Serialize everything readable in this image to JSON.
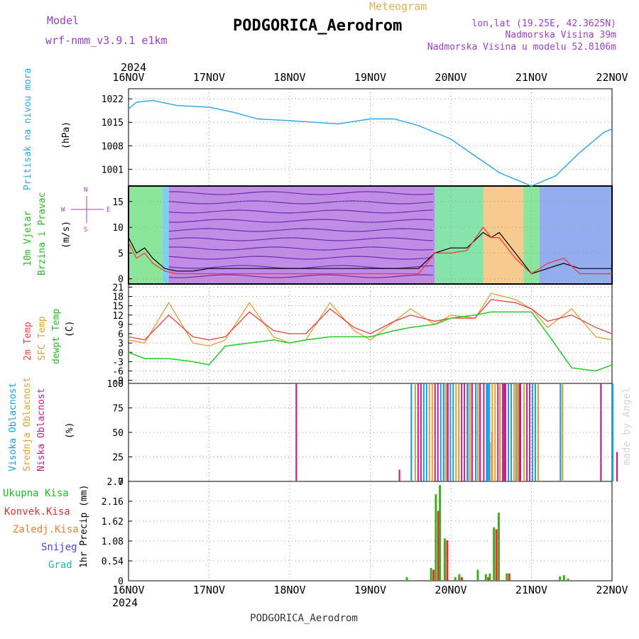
{
  "header": {
    "model_label": "Model",
    "model_name": "wrf-nmm_v3.9.1 e1km",
    "meteogram_label": "Meteogram",
    "station_title": "PODGORICA_Aerodrom",
    "lonlat": "lon,lat (19.25E, 42.3625N)",
    "elevation": "Nadmorska Visina 39m",
    "model_elevation": "Nadmorska Visina u modelu 52.8106m",
    "footer_title": "PODGORICA_Aerodrom",
    "watermark": "made by Angel",
    "year_top": "2024",
    "year_bottom": "2024",
    "date_ticks": [
      "16NOV",
      "17NOV",
      "18NOV",
      "19NOV",
      "20NOV",
      "21NOV",
      "22NOV"
    ]
  },
  "colors": {
    "pressure": "#2aa7e6",
    "wind_green": "#22bb22",
    "temp": "#e84040",
    "sfc": "#e0a030",
    "dew": "#22cc22",
    "high_cloud": "#1a9fe0",
    "mid_cloud": "#e0a030",
    "low_cloud": "#c0208a",
    "purple": "#9a40c8",
    "total_precip": "#44aa22",
    "conv_precip": "#e03030",
    "frozen": "#e88030",
    "snow": "#4444dd",
    "hail": "#22bbaa"
  },
  "panels": {
    "pressure": {
      "label1": "Pritisak na nivou mora",
      "unit": "(hPa)"
    },
    "wind": {
      "label1": "10m Vjetar",
      "label2": "Brzina i Pravac",
      "unit": "(m/s)",
      "compass_n": "N",
      "compass_w": "W",
      "compass_e": "E",
      "compass_s": "S"
    },
    "temp": {
      "label1": "2m Temp",
      "label2": "SFC Temp",
      "label3": "dewpt Temp",
      "unit": "(C)"
    },
    "cloud": {
      "label1": "Visoka Oblacnost",
      "label2": "Srednja Oblacnost",
      "label3": "Niska Oblacnost",
      "unit": "(%)"
    },
    "precip": {
      "label1": "Ukupna Kisa",
      "label2": "Konvek.Kisa",
      "label3": "Zaledj.Kisa",
      "label4": "Snijeg",
      "label5": "Grad",
      "unit": "1hr Precip (mm)"
    }
  },
  "chart_data": [
    {
      "type": "line",
      "x": [
        0,
        0.1,
        0.3,
        0.6,
        1,
        1.3,
        1.6,
        2,
        2.3,
        2.6,
        3,
        3.3,
        3.6,
        4,
        4.3,
        4.6,
        5,
        5.3,
        5.6,
        5.9,
        6
      ],
      "series": [
        {
          "values": [
            1019,
            1021,
            1021.5,
            1020,
            1019.5,
            1018,
            1016,
            1015.5,
            1015,
            1014.5,
            1016,
            1016,
            1014,
            1010,
            1005,
            1000,
            996,
            999,
            1006,
            1012,
            1013
          ]
        }
      ],
      "ylim": [
        996,
        1025
      ],
      "yticks": [
        "1001",
        "1008",
        "1015",
        "1022"
      ]
    },
    {
      "type": "line",
      "x": [
        0,
        0.1,
        0.2,
        0.3,
        0.45,
        0.6,
        0.8,
        1,
        1.5,
        2,
        2.5,
        3,
        3.3,
        3.6,
        3.8,
        4,
        4.2,
        4.4,
        4.5,
        4.6,
        4.8,
        5,
        5.2,
        5.4,
        5.6,
        5.8,
        6
      ],
      "series": [
        {
          "values": [
            8,
            5,
            6,
            4,
            2,
            1.5,
            1.5,
            2,
            2,
            2,
            2,
            2,
            2,
            2,
            5,
            6,
            6,
            9,
            8,
            9,
            5,
            1,
            2,
            3,
            2,
            2,
            2
          ]
        },
        {
          "values": [
            7,
            4,
            5,
            3,
            1.5,
            1,
            1,
            1,
            1,
            1,
            1,
            1,
            1,
            1,
            5,
            5,
            5.5,
            10,
            8,
            8,
            4,
            1,
            3,
            4,
            1,
            1,
            1
          ]
        }
      ],
      "ylim": [
        -1,
        18
      ],
      "yticks": [
        "0",
        "5",
        "10",
        "15"
      ]
    },
    {
      "type": "line",
      "x": [
        0,
        0.2,
        0.5,
        0.8,
        1,
        1.2,
        1.5,
        1.8,
        2,
        2.2,
        2.5,
        2.8,
        3,
        3.3,
        3.5,
        3.8,
        4,
        4.3,
        4.5,
        4.8,
        5,
        5.2,
        5.5,
        5.8,
        6
      ],
      "series": [
        {
          "name": "2m Temp",
          "values": [
            5,
            4,
            12,
            5,
            4,
            5,
            13,
            7,
            6,
            6,
            14,
            8,
            6,
            10,
            12,
            10,
            11,
            11,
            17,
            16,
            14,
            10,
            12,
            8,
            6
          ]
        },
        {
          "name": "SFC Temp",
          "values": [
            4,
            3,
            16,
            3,
            2,
            4,
            16,
            5,
            3,
            4,
            16,
            7,
            4,
            10,
            14,
            9,
            12,
            11,
            19,
            17,
            14,
            8,
            14,
            5,
            4
          ]
        },
        {
          "name": "dewpt Temp",
          "values": [
            0,
            -2,
            -2,
            -3,
            -4,
            2,
            3,
            4,
            3,
            4,
            5,
            5,
            5,
            7,
            8,
            9,
            11,
            12,
            13,
            13,
            13,
            6,
            -5,
            -6,
            -4
          ]
        }
      ],
      "ylim": [
        -10,
        22
      ],
      "yticks": [
        "-9",
        "-6",
        "-3",
        "0",
        "3",
        "6",
        "9",
        "12",
        "15",
        "18",
        "21"
      ]
    },
    {
      "type": "bar",
      "x": [
        2.02,
        3.3,
        3.5,
        3.9,
        4.2,
        4.3,
        4.45,
        4.6,
        4.8,
        5.35,
        5.8,
        6
      ],
      "series": [
        {
          "name": "Visoka Oblacnost",
          "values": [
            0,
            0,
            100,
            100,
            100,
            100,
            100,
            100,
            100,
            100,
            0,
            100
          ]
        },
        {
          "name": "Srednja Oblacnost",
          "values": [
            0,
            0,
            0,
            100,
            100,
            100,
            40,
            0,
            100,
            100,
            0,
            0
          ]
        },
        {
          "name": "Niska Oblacnost",
          "values": [
            100,
            12,
            0,
            100,
            100,
            100,
            50,
            100,
            100,
            0,
            100,
            30
          ]
        }
      ],
      "ylim": [
        0,
        100
      ],
      "yticks": [
        "0",
        "25",
        "50",
        "75",
        "100"
      ]
    },
    {
      "type": "bar",
      "x": [
        3.45,
        3.75,
        3.81,
        3.86,
        3.92,
        4.05,
        4.1,
        4.33,
        4.43,
        4.48,
        4.53,
        4.59,
        4.69,
        5.35,
        5.4,
        5.45
      ],
      "series": [
        {
          "name": "Ukupna Kisa",
          "values": [
            0.1,
            0.35,
            2.35,
            2.6,
            1.15,
            0.1,
            0.18,
            0.3,
            0.18,
            0.2,
            1.45,
            1.85,
            0.2,
            0.12,
            0.15,
            0.06
          ]
        },
        {
          "name": "Konvek.Kisa",
          "values": [
            0,
            0.3,
            1.9,
            0,
            1.1,
            0,
            0.1,
            0,
            0.1,
            0,
            1.4,
            0,
            0.2,
            0,
            0,
            0
          ]
        }
      ],
      "ylim": [
        0,
        2.7
      ],
      "yticks": [
        "0",
        "0.54",
        "1.08",
        "1.62",
        "2.16",
        "2.7"
      ]
    }
  ]
}
